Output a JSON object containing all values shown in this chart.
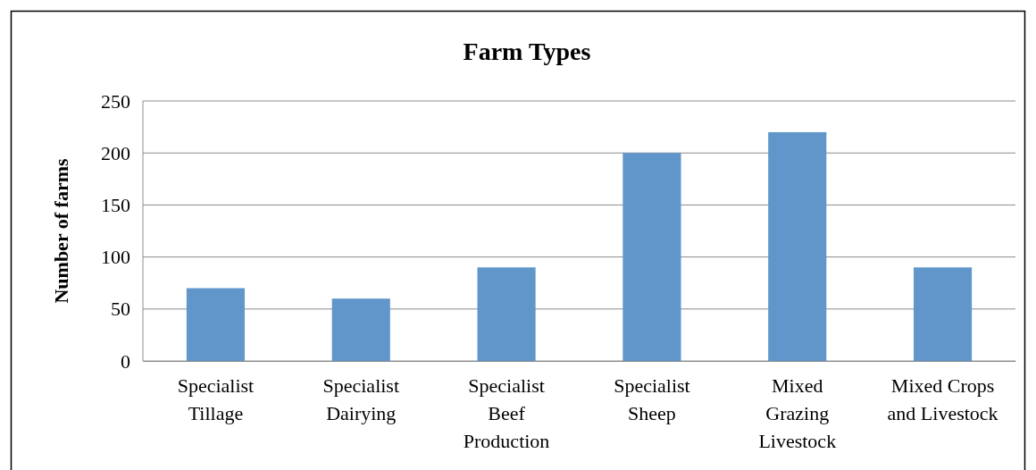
{
  "chart_data": {
    "type": "bar",
    "title": "Farm Types",
    "ylabel": "Number of farms",
    "categories": [
      "Specialist Tillage",
      "Specialist Dairying",
      "Specialist Beef Production",
      "Specialist Sheep",
      "Mixed Grazing Livestock",
      "Mixed Crops and Livestock"
    ],
    "values": [
      70,
      60,
      90,
      200,
      220,
      90
    ],
    "color": "#6096c9",
    "ylim": [
      0,
      250
    ],
    "yticks": [
      0,
      50,
      100,
      150,
      200,
      250
    ],
    "grid": "y"
  }
}
